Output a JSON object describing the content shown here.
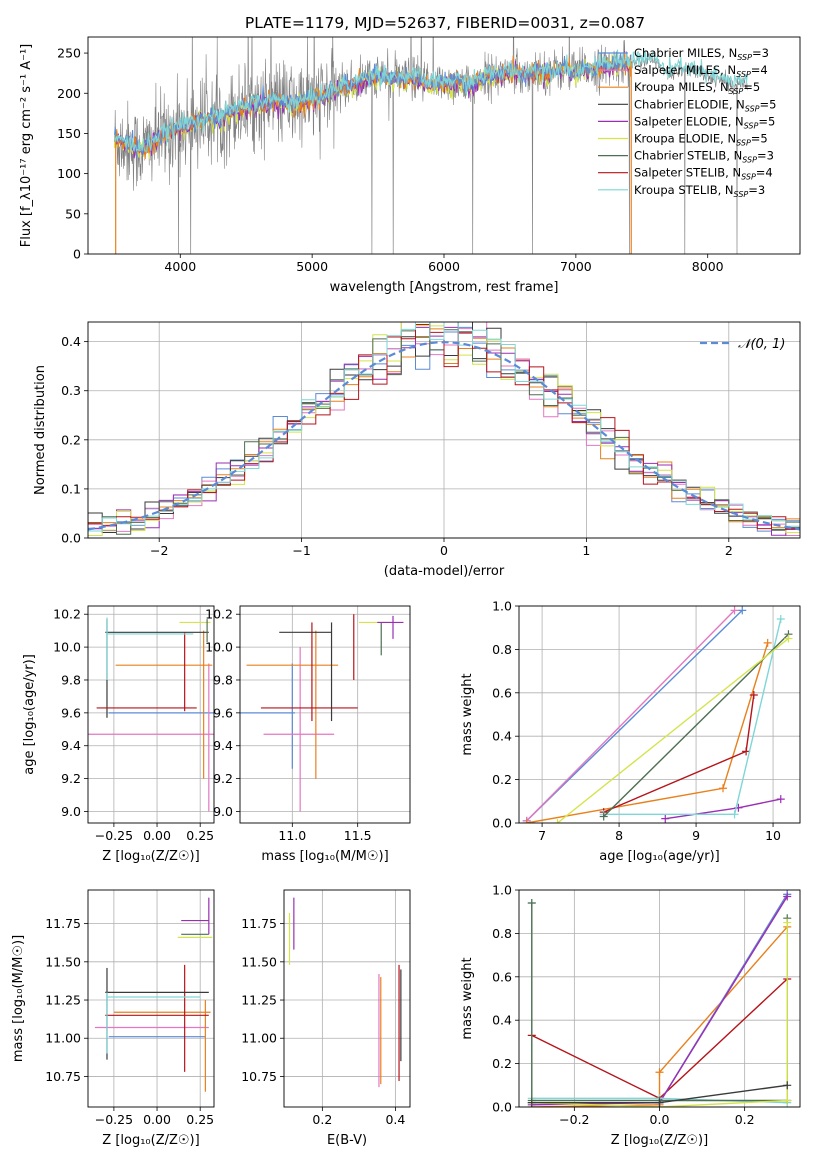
{
  "title": "PLATE=1179, MJD=52637, FIBERID=0031, z=0.087",
  "colors": {
    "gray": "#808080",
    "chabrier_miles": "#5b8bd6",
    "salpeter_miles": "#e377c2",
    "kroupa_miles": "#e8801c",
    "chabrier_elodie": "#3a3a3a",
    "salpeter_elodie": "#9a2fb3",
    "kroupa_elodie": "#d4e44a",
    "chabrier_stelib": "#4f6f52",
    "salpeter_stelib": "#b5141a",
    "kroupa_stelib": "#7fd6d6"
  },
  "chart_data": [
    {
      "id": "spectrum",
      "type": "line",
      "xlabel": "wavelength [Angstrom, rest frame]",
      "ylabel": "Flux [f_λ10⁻¹⁷ erg cm⁻² s⁻¹ A⁻¹]",
      "xlim": [
        3300,
        8700
      ],
      "ylim": [
        0,
        270
      ],
      "xticks": [
        4000,
        5000,
        6000,
        7000,
        8000
      ],
      "yticks": [
        0,
        50,
        100,
        150,
        200,
        250
      ],
      "grid": false,
      "legend_position": "top-right",
      "model_curve": {
        "x": [
          3500,
          3600,
          3700,
          3800,
          3900,
          4000,
          4100,
          4200,
          4300,
          4400,
          4500,
          4600,
          4700,
          4800,
          4900,
          5000,
          5100,
          5200,
          5300,
          5400,
          5500,
          5600,
          5700,
          5800,
          5900,
          6000,
          6100,
          6200,
          6300,
          6400,
          6500,
          6600,
          6700,
          6800,
          6900,
          7000,
          7100,
          7200,
          7300,
          7400,
          7500,
          7600,
          7700,
          7800,
          7900,
          8000,
          8100,
          8200,
          8300
        ],
        "y": [
          142,
          136,
          128,
          140,
          150,
          158,
          163,
          168,
          168,
          178,
          184,
          186,
          190,
          188,
          186,
          192,
          196,
          206,
          210,
          218,
          222,
          218,
          218,
          218,
          210,
          212,
          214,
          210,
          220,
          222,
          226,
          224,
          228,
          226,
          230,
          226,
          230,
          232,
          236,
          238,
          242,
          240,
          222,
          232,
          228,
          220,
          216,
          210,
          214
        ]
      },
      "legend": [
        {
          "label": "Chabrier MILES, N",
          "sub": "SSP",
          "suffix": "=3",
          "color_key": "chabrier_miles"
        },
        {
          "label": "Salpeter MILES, N",
          "sub": "SSP",
          "suffix": "=4",
          "color_key": "salpeter_miles"
        },
        {
          "label": "Kroupa MILES, N",
          "sub": "SSP",
          "suffix": "=5",
          "color_key": "kroupa_miles"
        },
        {
          "label": "Chabrier ELODIE, N",
          "sub": "SSP",
          "suffix": "=5",
          "color_key": "chabrier_elodie"
        },
        {
          "label": "Salpeter ELODIE, N",
          "sub": "SSP",
          "suffix": "=5",
          "color_key": "salpeter_elodie"
        },
        {
          "label": "Kroupa ELODIE, N",
          "sub": "SSP",
          "suffix": "=5",
          "color_key": "kroupa_elodie"
        },
        {
          "label": "Chabrier STELIB, N",
          "sub": "SSP",
          "suffix": "=3",
          "color_key": "chabrier_stelib"
        },
        {
          "label": "Salpeter STELIB, N",
          "sub": "SSP",
          "suffix": "=4",
          "color_key": "salpeter_stelib"
        },
        {
          "label": "Kroupa STELIB, N",
          "sub": "SSP",
          "suffix": "=3",
          "color_key": "kroupa_stelib"
        }
      ]
    },
    {
      "id": "residuals",
      "type": "line",
      "xlabel": "(data-model)/error",
      "ylabel": "Normed distribution",
      "xlim": [
        -2.5,
        2.5
      ],
      "ylim": [
        0,
        0.44
      ],
      "xticks": [
        -2,
        -1,
        0,
        1,
        2
      ],
      "yticks": [
        0.0,
        0.1,
        0.2,
        0.3,
        0.4
      ],
      "grid": true,
      "legend_position": "top-right",
      "gaussian_label": "𝒩(0, 1)",
      "bin_width": 0.1
    },
    {
      "id": "age_vs_Z",
      "type": "scatter",
      "xlabel": "Z [log₁₀(Z/Z☉)]",
      "ylabel": "age  [log₁₀(age/yr)]",
      "xlim": [
        -0.4,
        0.33
      ],
      "ylim": [
        8.93,
        10.25
      ],
      "xticks": [
        -0.25,
        0.0,
        0.25
      ],
      "yticks": [
        9.0,
        9.2,
        9.4,
        9.6,
        9.8,
        10.0,
        10.2
      ],
      "grid": true,
      "points": [
        {
          "color_key": "chabrier_miles",
          "x": 0.3,
          "xerr": 0.58,
          "y": 9.6,
          "yerr": 0.0
        },
        {
          "color_key": "salpeter_miles",
          "x": -0.05,
          "xerr": 0.4,
          "y": 9.47,
          "yerr": 0.0
        },
        {
          "color_key": "salpeter_miles",
          "x": 0.3,
          "xerr": 0.0,
          "y": 9.45,
          "yerr": 0.45
        },
        {
          "color_key": "kroupa_miles",
          "x": 0.04,
          "xerr": 0.28,
          "y": 9.89,
          "yerr": 0.0
        },
        {
          "color_key": "kroupa_miles",
          "x": 0.27,
          "xerr": 0.0,
          "y": 9.65,
          "yerr": 0.45
        },
        {
          "color_key": "chabrier_elodie",
          "x": -0.29,
          "xerr": 0.0,
          "y": 9.87,
          "yerr": 0.3
        },
        {
          "color_key": "chabrier_elodie",
          "x": 0.0,
          "xerr": 0.3,
          "y": 10.09,
          "yerr": 0.0
        },
        {
          "color_key": "salpeter_stelib",
          "x": 0.16,
          "xerr": 0.0,
          "y": 9.85,
          "yerr": 0.24
        },
        {
          "color_key": "salpeter_stelib",
          "x": -0.06,
          "xerr": 0.29,
          "y": 9.63,
          "yerr": 0.0
        },
        {
          "color_key": "kroupa_stelib",
          "x": -0.29,
          "xerr": 0.0,
          "y": 9.99,
          "yerr": 0.19
        },
        {
          "color_key": "kroupa_stelib",
          "x": -0.04,
          "xerr": 0.25,
          "y": 10.08,
          "yerr": 0.0
        },
        {
          "color_key": "kroupa_elodie",
          "x": 0.22,
          "xerr": 0.09,
          "y": 10.15,
          "yerr": 0.0
        },
        {
          "color_key": "chabrier_stelib",
          "x": 0.29,
          "xerr": 0.0,
          "y": 10.1,
          "yerr": 0.07
        }
      ]
    },
    {
      "id": "age_vs_mass",
      "type": "scatter",
      "xlabel": "mass [log₁₀(M/M☉)]",
      "ylabel": "",
      "xlim": [
        10.6,
        11.9
      ],
      "ylim": [
        8.93,
        10.25
      ],
      "xticks": [
        11.0,
        11.5
      ],
      "yticks": [
        9.0,
        9.2,
        9.4,
        9.6,
        9.8,
        10.0,
        10.2
      ],
      "grid": true,
      "points": [
        {
          "color_key": "chabrier_miles",
          "x": 10.8,
          "xerr": 0.22,
          "y": 9.6,
          "yerr": 0.0
        },
        {
          "color_key": "chabrier_miles",
          "x": 11.0,
          "xerr": 0.0,
          "y": 9.58,
          "yerr": 0.32
        },
        {
          "color_key": "salpeter_miles",
          "x": 11.05,
          "xerr": 0.27,
          "y": 9.47,
          "yerr": 0.0
        },
        {
          "color_key": "salpeter_miles",
          "x": 11.06,
          "xerr": 0.0,
          "y": 9.5,
          "yerr": 0.5
        },
        {
          "color_key": "kroupa_miles",
          "x": 11.0,
          "xerr": 0.35,
          "y": 9.89,
          "yerr": 0.0
        },
        {
          "color_key": "kroupa_miles",
          "x": 11.18,
          "xerr": 0.0,
          "y": 9.65,
          "yerr": 0.45
        },
        {
          "color_key": "salpeter_stelib",
          "x": 11.13,
          "xerr": 0.37,
          "y": 9.63,
          "yerr": 0.0
        },
        {
          "color_key": "salpeter_stelib",
          "x": 11.15,
          "xerr": 0.0,
          "y": 9.85,
          "yerr": 0.3
        },
        {
          "color_key": "chabrier_elodie",
          "x": 11.1,
          "xerr": 0.2,
          "y": 10.09,
          "yerr": 0.0
        },
        {
          "color_key": "chabrier_elodie",
          "x": 11.3,
          "xerr": 0.0,
          "y": 9.85,
          "yerr": 0.3
        },
        {
          "color_key": "salpeter_stelib",
          "x": 11.47,
          "xerr": 0.0,
          "y": 10.0,
          "yerr": 0.2
        },
        {
          "color_key": "kroupa_elodie",
          "x": 11.63,
          "xerr": 0.12,
          "y": 10.15,
          "yerr": 0.0
        },
        {
          "color_key": "chabrier_stelib",
          "x": 11.68,
          "xerr": 0.0,
          "y": 10.05,
          "yerr": 0.1
        },
        {
          "color_key": "salpeter_elodie",
          "x": 11.75,
          "xerr": 0.1,
          "y": 10.15,
          "yerr": 0.0
        },
        {
          "color_key": "salpeter_elodie",
          "x": 11.77,
          "xerr": 0.0,
          "y": 10.12,
          "yerr": 0.07
        }
      ]
    },
    {
      "id": "massweight_vs_age",
      "type": "line",
      "xlabel": "age  [log₁₀(age/yr)]",
      "ylabel": "mass weight",
      "xlim": [
        6.7,
        10.35
      ],
      "ylim": [
        0,
        1.0
      ],
      "xticks": [
        7,
        8,
        9,
        10
      ],
      "yticks": [
        0.0,
        0.2,
        0.4,
        0.6,
        0.8,
        1.0
      ],
      "grid": true,
      "series": [
        {
          "color_key": "chabrier_miles",
          "x": [
            6.8,
            9.6
          ],
          "y": [
            0.01,
            0.98
          ]
        },
        {
          "color_key": "salpeter_miles",
          "x": [
            6.8,
            9.5
          ],
          "y": [
            0.01,
            0.98
          ]
        },
        {
          "color_key": "kroupa_miles",
          "x": [
            6.8,
            9.35,
            9.93
          ],
          "y": [
            0.0,
            0.16,
            0.83
          ]
        },
        {
          "color_key": "salpeter_stelib",
          "x": [
            7.8,
            9.65,
            9.75
          ],
          "y": [
            0.05,
            0.33,
            0.59
          ]
        },
        {
          "color_key": "salpeter_elodie",
          "x": [
            8.6,
            9.55,
            10.1
          ],
          "y": [
            0.02,
            0.07,
            0.11
          ]
        },
        {
          "color_key": "kroupa_stelib",
          "x": [
            7.8,
            9.5,
            10.1
          ],
          "y": [
            0.04,
            0.04,
            0.94
          ]
        },
        {
          "color_key": "chabrier_stelib",
          "x": [
            7.8,
            10.2
          ],
          "y": [
            0.03,
            0.87
          ]
        },
        {
          "color_key": "kroupa_elodie",
          "x": [
            7.2,
            10.2
          ],
          "y": [
            0.0,
            0.85
          ]
        }
      ]
    },
    {
      "id": "mass_vs_Z",
      "type": "scatter",
      "xlabel": "Z [log₁₀(Z/Z☉)]",
      "ylabel": "mass [log₁₀(M/M☉)]",
      "xlim": [
        -0.4,
        0.33
      ],
      "ylim": [
        10.55,
        11.97
      ],
      "xticks": [
        -0.25,
        0.0,
        0.25
      ],
      "yticks": [
        10.75,
        11.0,
        11.25,
        11.5,
        11.75
      ],
      "grid": true,
      "points": [
        {
          "color_key": "chabrier_miles",
          "x": 0.0,
          "xerr": 0.28,
          "y": 11.01,
          "yerr": 0.0
        },
        {
          "color_key": "salpeter_miles",
          "x": -0.03,
          "xerr": 0.33,
          "y": 11.07,
          "yerr": 0.0
        },
        {
          "color_key": "kroupa_miles",
          "x": 0.03,
          "xerr": 0.28,
          "y": 11.17,
          "yerr": 0.0
        },
        {
          "color_key": "kroupa_miles",
          "x": 0.28,
          "xerr": 0.0,
          "y": 10.95,
          "yerr": 0.3
        },
        {
          "color_key": "salpeter_stelib",
          "x": 0.0,
          "xerr": 0.3,
          "y": 11.15,
          "yerr": 0.0
        },
        {
          "color_key": "salpeter_stelib",
          "x": 0.16,
          "xerr": 0.0,
          "y": 11.13,
          "yerr": 0.35
        },
        {
          "color_key": "chabrier_elodie",
          "x": 0.0,
          "xerr": 0.3,
          "y": 11.3,
          "yerr": 0.0
        },
        {
          "color_key": "chabrier_elodie",
          "x": -0.29,
          "xerr": 0.0,
          "y": 11.16,
          "yerr": 0.3
        },
        {
          "color_key": "kroupa_stelib",
          "x": -0.02,
          "xerr": 0.27,
          "y": 11.27,
          "yerr": 0.0
        },
        {
          "color_key": "kroupa_stelib",
          "x": -0.29,
          "xerr": 0.0,
          "y": 11.1,
          "yerr": 0.2
        },
        {
          "color_key": "kroupa_elodie",
          "x": 0.22,
          "xerr": 0.1,
          "y": 11.66,
          "yerr": 0.0
        },
        {
          "color_key": "chabrier_stelib",
          "x": 0.22,
          "xerr": 0.08,
          "y": 11.68,
          "yerr": 0.0
        },
        {
          "color_key": "salpeter_elodie",
          "x": 0.22,
          "xerr": 0.08,
          "y": 11.77,
          "yerr": 0.0
        },
        {
          "color_key": "salpeter_elodie",
          "x": 0.3,
          "xerr": 0.0,
          "y": 11.8,
          "yerr": 0.12
        }
      ]
    },
    {
      "id": "mass_vs_EBV",
      "type": "scatter",
      "xlabel": "E(B-V)",
      "ylabel": "",
      "xlim": [
        0.095,
        0.44
      ],
      "ylim": [
        10.55,
        11.97
      ],
      "xticks": [
        0.2,
        0.4
      ],
      "yticks": [
        10.75,
        11.0,
        11.25,
        11.5,
        11.75
      ],
      "grid": true,
      "points": [
        {
          "color_key": "kroupa_elodie",
          "x": 0.11,
          "xerr": 0.0,
          "y": 11.65,
          "yerr": 0.17
        },
        {
          "color_key": "salpeter_elodie",
          "x": 0.122,
          "xerr": 0.0,
          "y": 11.75,
          "yerr": 0.17
        },
        {
          "color_key": "salpeter_miles",
          "x": 0.355,
          "xerr": 0.0,
          "y": 11.05,
          "yerr": 0.37
        },
        {
          "color_key": "kroupa_miles",
          "x": 0.36,
          "xerr": 0.0,
          "y": 11.05,
          "yerr": 0.35
        },
        {
          "color_key": "salpeter_stelib",
          "x": 0.41,
          "xerr": 0.0,
          "y": 11.1,
          "yerr": 0.38
        },
        {
          "color_key": "chabrier_elodie",
          "x": 0.415,
          "xerr": 0.0,
          "y": 11.15,
          "yerr": 0.3
        }
      ]
    },
    {
      "id": "massweight_vs_Z",
      "type": "line",
      "xlabel": "Z [log₁₀(Z/Z☉)]",
      "ylabel": "mass weight",
      "xlim": [
        -0.33,
        0.33
      ],
      "ylim": [
        0,
        1.0
      ],
      "xticks": [
        -0.2,
        0.0,
        0.2
      ],
      "yticks": [
        0.0,
        0.2,
        0.4,
        0.6,
        0.8,
        1.0
      ],
      "grid": true,
      "series": [
        {
          "color_key": "salpeter_stelib",
          "x": [
            -0.3,
            0.0,
            0.3
          ],
          "y": [
            0.33,
            0.04,
            0.59
          ]
        },
        {
          "color_key": "kroupa_miles",
          "x": [
            -0.3,
            0.0,
            0.0,
            0.3
          ],
          "y": [
            0.0,
            0.01,
            0.16,
            0.83
          ]
        },
        {
          "color_key": "salpeter_miles",
          "x": [
            -0.3,
            0.0,
            0.3
          ],
          "y": [
            0.02,
            0.02,
            0.98
          ]
        },
        {
          "color_key": "chabrier_miles",
          "x": [
            -0.3,
            0.0,
            0.3
          ],
          "y": [
            0.02,
            0.02,
            0.98
          ]
        },
        {
          "color_key": "salpeter_elodie",
          "x": [
            -0.3,
            0.0,
            0.3
          ],
          "y": [
            0.01,
            0.02,
            0.97
          ]
        },
        {
          "color_key": "kroupa_stelib",
          "x": [
            -0.3,
            -0.3,
            0.0,
            0.3
          ],
          "y": [
            0.94,
            0.04,
            0.04,
            0.02
          ]
        },
        {
          "color_key": "chabrier_stelib",
          "x": [
            -0.3,
            -0.3,
            0.0,
            0.3,
            0.3
          ],
          "y": [
            0.94,
            0.03,
            0.03,
            0.03,
            0.87
          ]
        },
        {
          "color_key": "kroupa_elodie",
          "x": [
            -0.3,
            0.0,
            0.3,
            0.3
          ],
          "y": [
            0.02,
            0.0,
            0.03,
            0.85
          ]
        },
        {
          "color_key": "chabrier_elodie",
          "x": [
            -0.3,
            0.0,
            0.3
          ],
          "y": [
            0.02,
            0.02,
            0.1
          ]
        }
      ]
    }
  ]
}
